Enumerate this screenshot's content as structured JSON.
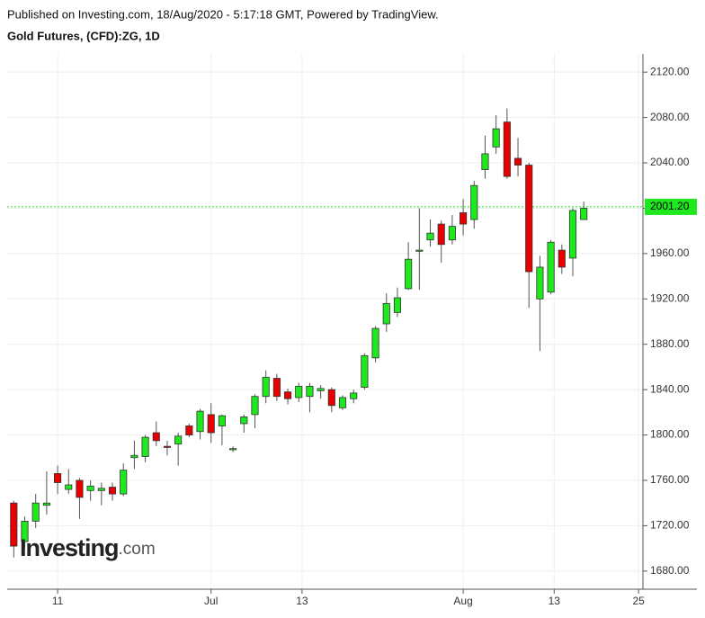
{
  "header": {
    "published": "Published on Investing.com, 18/Aug/2020 - 5:17:18 GMT, Powered by TradingView.",
    "symbol": "Gold Futures, (CFD):ZG, 1D"
  },
  "watermark": {
    "brand": "Investing",
    "suffix": ".com"
  },
  "chart_data": {
    "type": "candlestick",
    "x": [
      0,
      1,
      2,
      3,
      4,
      5,
      6,
      7,
      8,
      9,
      10,
      11,
      12,
      13,
      14,
      15,
      16,
      17,
      18,
      19,
      20,
      21,
      22,
      23,
      24,
      25,
      26,
      27,
      28,
      29,
      30,
      31,
      32,
      33,
      34,
      35,
      36,
      37,
      38,
      39,
      40,
      41,
      42,
      43,
      44,
      45,
      46,
      47,
      48,
      49,
      50,
      51,
      52
    ],
    "open": [
      1740,
      1706,
      1724,
      1738,
      1766,
      1752,
      1760,
      1751,
      1751,
      1754,
      1748,
      1780,
      1781,
      1802,
      1790,
      1792,
      1808,
      1803,
      1818,
      1808,
      1787,
      1810,
      1818,
      1834,
      1850,
      1838,
      1833,
      1834,
      1839,
      1840,
      1824,
      1832,
      1842,
      1868,
      1898,
      1908,
      1929,
      1962,
      1972,
      1986,
      1972,
      1996,
      1990,
      2034,
      2054,
      2076,
      2044,
      2038,
      1920,
      1926,
      1963,
      1956,
      1990
    ],
    "high": [
      1742,
      1728,
      1748,
      1768,
      1773,
      1770,
      1762,
      1760,
      1758,
      1758,
      1775,
      1795,
      1800,
      1812,
      1795,
      1802,
      1810,
      1823,
      1828,
      1818,
      1790,
      1818,
      1836,
      1857,
      1854,
      1841,
      1846,
      1846,
      1844,
      1842,
      1835,
      1840,
      1872,
      1896,
      1925,
      1930,
      1970,
      2000,
      1990,
      1989,
      1994,
      2008,
      2024,
      2064,
      2082,
      2088,
      2062,
      2040,
      1958,
      1972,
      1968,
      2000,
      2006
    ],
    "low": [
      1692,
      1700,
      1718,
      1730,
      1748,
      1748,
      1726,
      1742,
      1738,
      1742,
      1746,
      1770,
      1776,
      1790,
      1782,
      1773,
      1798,
      1796,
      1793,
      1791,
      1785,
      1802,
      1806,
      1828,
      1830,
      1827,
      1829,
      1820,
      1832,
      1820,
      1822,
      1828,
      1840,
      1864,
      1891,
      1904,
      1928,
      1928,
      1966,
      1952,
      1968,
      1976,
      1982,
      2026,
      2048,
      2026,
      2028,
      1912,
      1874,
      1924,
      1942,
      1940,
      1990
    ],
    "close": [
      1702,
      1724,
      1740,
      1740,
      1758,
      1756,
      1745,
      1755,
      1753,
      1748,
      1769,
      1782,
      1798,
      1795,
      1789,
      1799,
      1800,
      1821,
      1802,
      1817,
      1788,
      1816,
      1834,
      1851,
      1834,
      1832,
      1843,
      1843,
      1841,
      1826,
      1833,
      1837,
      1870,
      1894,
      1916,
      1921,
      1955,
      1963,
      1978,
      1968,
      1984,
      1986,
      2020,
      2048,
      2070,
      2028,
      2038,
      1944,
      1948,
      1970,
      1948,
      1998,
      2000
    ],
    "up_color": "#1ee81e",
    "down_color": "#e80000",
    "xlim": [
      -0.6,
      57.4
    ],
    "xticks": [
      {
        "value": 4,
        "label": "11"
      },
      {
        "value": 18,
        "label": "Jul"
      },
      {
        "value": 26.3,
        "label": "13"
      },
      {
        "value": 41,
        "label": "Aug"
      },
      {
        "value": 49.3,
        "label": "13"
      },
      {
        "value": 57,
        "label": "25"
      }
    ],
    "ylim": [
      1664,
      2136
    ],
    "yticks": [
      {
        "value": 1680,
        "label": "1680.00"
      },
      {
        "value": 1720,
        "label": "1720.00"
      },
      {
        "value": 1760,
        "label": "1760.00"
      },
      {
        "value": 1800,
        "label": "1800.00"
      },
      {
        "value": 1840,
        "label": "1840.00"
      },
      {
        "value": 1880,
        "label": "1880.00"
      },
      {
        "value": 1920,
        "label": "1920.00"
      },
      {
        "value": 1960,
        "label": "1960.00"
      },
      {
        "value": 2000,
        "label": "2000.00"
      },
      {
        "value": 2040,
        "label": "2040.00"
      },
      {
        "value": 2080,
        "label": "2080.00"
      },
      {
        "value": 2120,
        "label": "2120.00"
      }
    ],
    "last_price": {
      "value": 2001.2,
      "label": "2001.20"
    },
    "last_price_color": "#1ee81e",
    "grid": true
  }
}
